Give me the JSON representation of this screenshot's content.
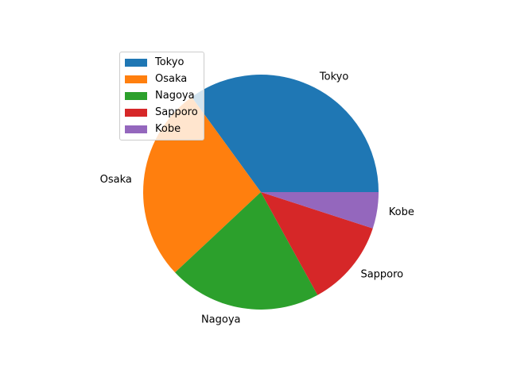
{
  "chart_data": {
    "type": "pie",
    "title": "",
    "labels": [
      "Tokyo",
      "Osaka",
      "Nagoya",
      "Sapporo",
      "Kobe"
    ],
    "values": [
      35,
      27,
      21,
      12,
      5
    ],
    "colors": [
      "#1f77b4",
      "#ff7f0e",
      "#2ca02c",
      "#d62728",
      "#9467bd"
    ],
    "start_angle_deg": 0,
    "direction": "counterclockwise",
    "legend": {
      "placement": "upper-left",
      "entries": [
        "Tokyo",
        "Osaka",
        "Nagoya",
        "Sapporo",
        "Kobe"
      ]
    }
  }
}
